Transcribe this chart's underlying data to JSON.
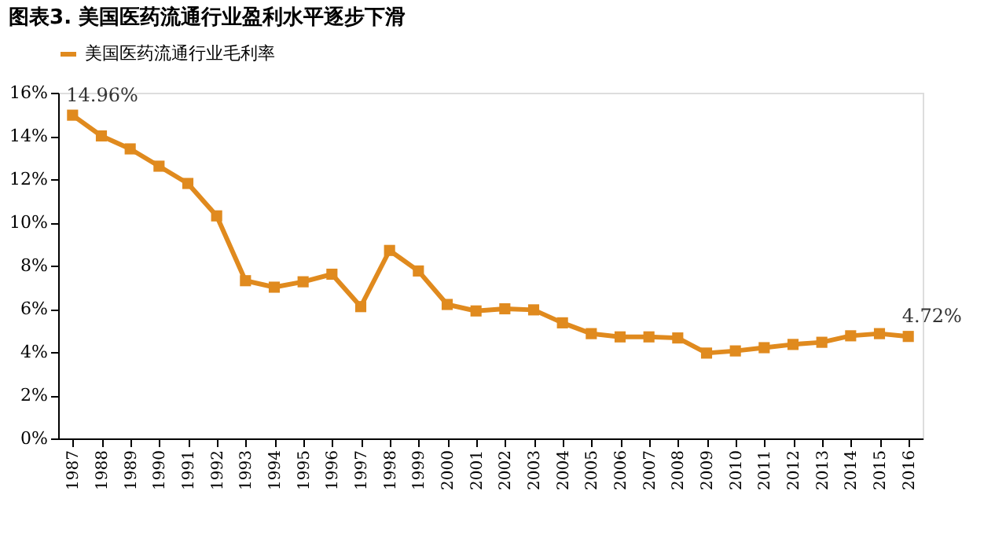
{
  "chart_data": {
    "type": "line",
    "title": "图表3.    美国医药流通行业盈利水平逐步下滑",
    "categories": [
      "1987",
      "1988",
      "1989",
      "1990",
      "1991",
      "1992",
      "1993",
      "1994",
      "1995",
      "1996",
      "1997",
      "1998",
      "1999",
      "2000",
      "2001",
      "2002",
      "2003",
      "2004",
      "2005",
      "2006",
      "2007",
      "2008",
      "2009",
      "2010",
      "2011",
      "2012",
      "2013",
      "2014",
      "2015",
      "2016"
    ],
    "series": [
      {
        "name": "美国医药流通行业毛利率",
        "color": "#e08a1e",
        "values": [
          14.96,
          14.0,
          13.4,
          12.6,
          11.8,
          10.3,
          7.3,
          7.0,
          7.25,
          7.6,
          6.1,
          8.7,
          7.75,
          6.2,
          5.9,
          6.0,
          5.95,
          5.35,
          4.85,
          4.7,
          4.7,
          4.65,
          3.95,
          4.05,
          4.2,
          4.35,
          4.45,
          4.75,
          4.85,
          4.72
        ],
        "value_labels": [
          "14.96%",
          null,
          null,
          null,
          null,
          null,
          null,
          null,
          null,
          null,
          null,
          null,
          null,
          null,
          null,
          null,
          null,
          null,
          null,
          null,
          null,
          null,
          null,
          null,
          null,
          null,
          null,
          null,
          null,
          "4.72%"
        ]
      }
    ],
    "ylim": [
      0,
      16
    ],
    "yticks": [
      {
        "value": 0,
        "label": "0%"
      },
      {
        "value": 2,
        "label": "2%"
      },
      {
        "value": 4,
        "label": "4%"
      },
      {
        "value": 6,
        "label": "6%"
      },
      {
        "value": 8,
        "label": "8%"
      },
      {
        "value": 10,
        "label": "10%"
      },
      {
        "value": 12,
        "label": "12%"
      },
      {
        "value": 14,
        "label": "14%"
      },
      {
        "value": 16,
        "label": "16%"
      }
    ],
    "grid": false,
    "legend": "top",
    "marker": "square",
    "line_style": "solid"
  }
}
